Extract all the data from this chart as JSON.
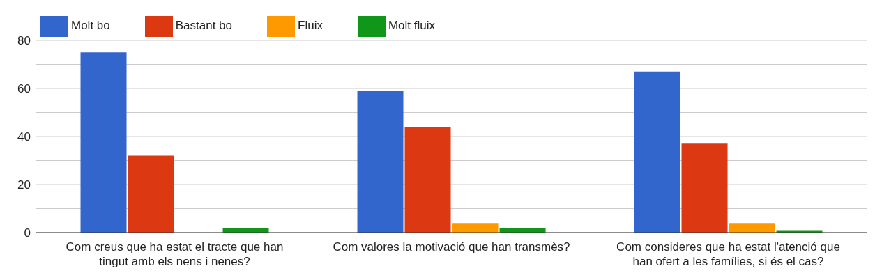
{
  "chart_data": {
    "type": "bar",
    "categories": [
      "Com creus que ha estat el tracte que han tingut amb els nens i nenes?",
      "Com valores la motivació que han transmès?",
      "Com consideres que ha estat l'atenció que han ofert a les famílies, si és el cas?"
    ],
    "series": [
      {
        "name": "Molt bo",
        "color": "#3366cc",
        "values": [
          75,
          59,
          67
        ]
      },
      {
        "name": "Bastant bo",
        "color": "#dc3912",
        "values": [
          32,
          44,
          37
        ]
      },
      {
        "name": "Fluix",
        "color": "#ff9900",
        "values": [
          0,
          4,
          4
        ]
      },
      {
        "name": "Molt fluix",
        "color": "#109618",
        "values": [
          2,
          2,
          1
        ]
      }
    ],
    "ylim": [
      0,
      80
    ],
    "yticks": [
      0,
      {
        "value": 10,
        "label": null
      },
      20,
      {
        "value": 30,
        "label": null
      },
      40,
      {
        "value": 50,
        "label": null
      },
      60,
      {
        "value": 70,
        "label": null
      },
      80
    ],
    "grid": "y",
    "legend": "top left"
  }
}
